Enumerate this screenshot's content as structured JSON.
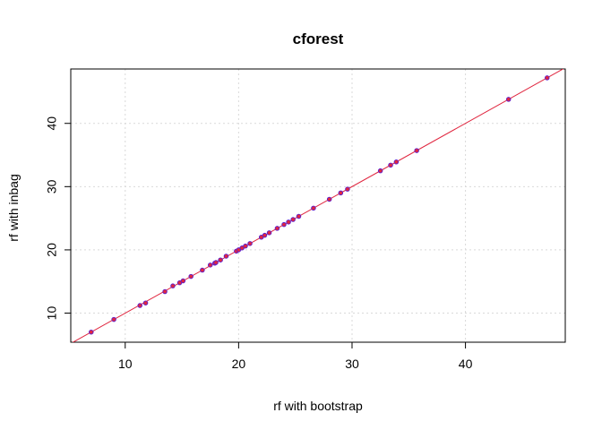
{
  "chart_data": {
    "type": "scatter",
    "title": "cforest",
    "xlabel": "rf with bootstrap",
    "ylabel": "rf with inbag",
    "xlim": [
      5.2,
      48.8
    ],
    "ylim": [
      5.4,
      48.6
    ],
    "xticks": [
      10,
      20,
      30,
      40
    ],
    "yticks": [
      10,
      20,
      30,
      40
    ],
    "xtick_labels": [
      "10",
      "20",
      "30",
      "40"
    ],
    "ytick_labels": [
      "10",
      "20",
      "30",
      "40"
    ],
    "grid": true,
    "reference_line": {
      "slope": 1,
      "intercept": 0,
      "color": "#e0263f"
    },
    "series": [
      {
        "marker_color": "#e0263f",
        "points": [
          [
            7.0,
            7.0
          ],
          [
            9.0,
            9.0
          ],
          [
            11.3,
            11.2
          ],
          [
            11.8,
            11.6
          ],
          [
            13.5,
            13.4
          ],
          [
            14.2,
            14.3
          ],
          [
            14.8,
            14.8
          ],
          [
            15.1,
            15.1
          ],
          [
            15.8,
            15.8
          ],
          [
            16.8,
            16.8
          ],
          [
            17.5,
            17.6
          ],
          [
            17.9,
            17.9
          ],
          [
            18.0,
            18.0
          ],
          [
            18.4,
            18.4
          ],
          [
            18.9,
            19.0
          ],
          [
            19.8,
            19.8
          ],
          [
            20.0,
            20.0
          ],
          [
            20.3,
            20.3
          ],
          [
            20.6,
            20.6
          ],
          [
            21.0,
            21.0
          ],
          [
            22.0,
            22.0
          ],
          [
            22.3,
            22.3
          ],
          [
            22.7,
            22.7
          ],
          [
            23.4,
            23.4
          ],
          [
            24.0,
            24.0
          ],
          [
            24.4,
            24.4
          ],
          [
            24.8,
            24.8
          ],
          [
            25.3,
            25.3
          ],
          [
            26.6,
            26.6
          ],
          [
            28.0,
            28.0
          ],
          [
            29.0,
            29.0
          ],
          [
            29.6,
            29.6
          ],
          [
            32.5,
            32.5
          ],
          [
            33.4,
            33.4
          ],
          [
            33.9,
            33.9
          ],
          [
            35.7,
            35.7
          ],
          [
            43.8,
            43.8
          ],
          [
            47.2,
            47.2
          ]
        ]
      }
    ]
  }
}
